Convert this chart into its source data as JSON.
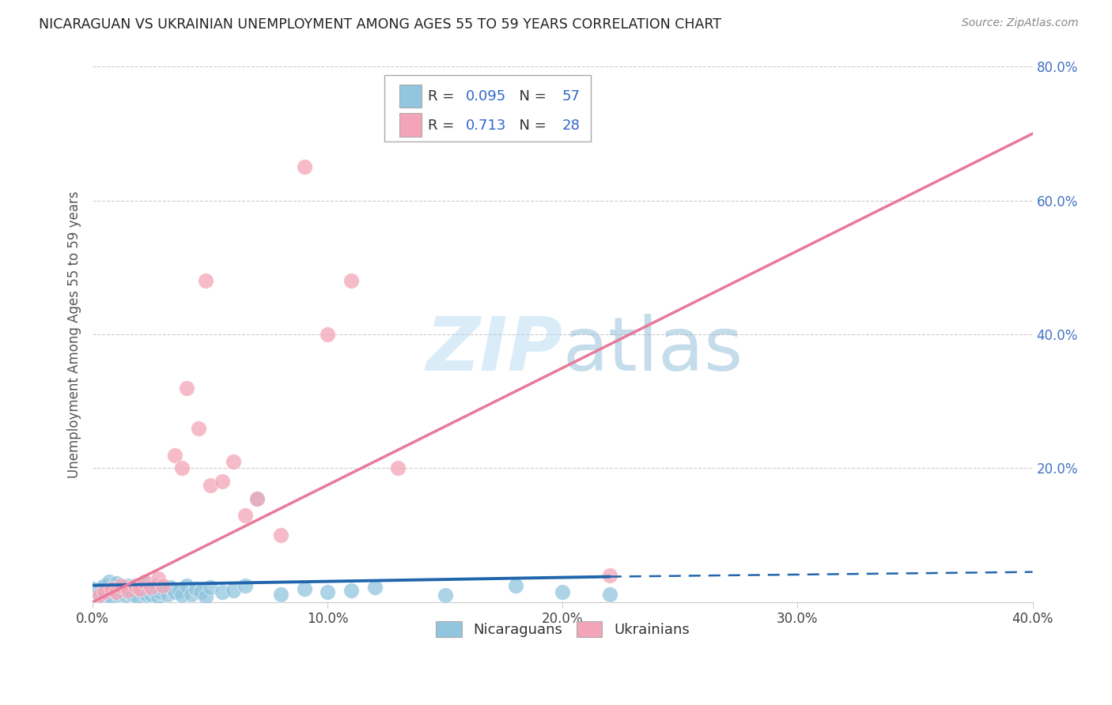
{
  "title": "NICARAGUAN VS UKRAINIAN UNEMPLOYMENT AMONG AGES 55 TO 59 YEARS CORRELATION CHART",
  "source": "Source: ZipAtlas.com",
  "ylabel": "Unemployment Among Ages 55 to 59 years",
  "xlim": [
    0.0,
    0.4
  ],
  "ylim": [
    0.0,
    0.8
  ],
  "nicaraguan_R": 0.095,
  "nicaraguan_N": 57,
  "ukrainian_R": 0.713,
  "ukrainian_N": 28,
  "blue_scatter_color": "#92c5de",
  "pink_scatter_color": "#f4a4b8",
  "blue_line_color": "#2166ac",
  "pink_line_color": "#e8799a",
  "legend_R_color": "#3366cc",
  "legend_N_color": "#3366cc",
  "watermark_color": "#aed6f1",
  "background_color": "#ffffff",
  "grid_color": "#cccccc",
  "ytick_color": "#4472c4",
  "nic_x": [
    0.0,
    0.002,
    0.003,
    0.004,
    0.005,
    0.005,
    0.006,
    0.007,
    0.008,
    0.009,
    0.01,
    0.01,
    0.011,
    0.012,
    0.013,
    0.014,
    0.015,
    0.015,
    0.016,
    0.017,
    0.018,
    0.019,
    0.02,
    0.021,
    0.022,
    0.023,
    0.024,
    0.025,
    0.026,
    0.027,
    0.028,
    0.029,
    0.03,
    0.032,
    0.033,
    0.035,
    0.037,
    0.038,
    0.04,
    0.042,
    0.044,
    0.046,
    0.048,
    0.05,
    0.055,
    0.06,
    0.065,
    0.07,
    0.08,
    0.09,
    0.1,
    0.11,
    0.12,
    0.15,
    0.18,
    0.2,
    0.22
  ],
  "nic_y": [
    0.02,
    0.015,
    0.018,
    0.022,
    0.01,
    0.025,
    0.012,
    0.03,
    0.008,
    0.02,
    0.015,
    0.028,
    0.012,
    0.018,
    0.022,
    0.01,
    0.025,
    0.015,
    0.02,
    0.012,
    0.018,
    0.008,
    0.022,
    0.015,
    0.028,
    0.01,
    0.02,
    0.012,
    0.018,
    0.025,
    0.008,
    0.015,
    0.02,
    0.012,
    0.022,
    0.015,
    0.018,
    0.01,
    0.025,
    0.012,
    0.02,
    0.015,
    0.008,
    0.022,
    0.015,
    0.018,
    0.025,
    0.155,
    0.012,
    0.02,
    0.015,
    0.018,
    0.022,
    0.01,
    0.025,
    0.015,
    0.012
  ],
  "ukr_x": [
    0.003,
    0.005,
    0.008,
    0.01,
    0.012,
    0.015,
    0.018,
    0.02,
    0.022,
    0.025,
    0.028,
    0.03,
    0.035,
    0.038,
    0.04,
    0.045,
    0.048,
    0.05,
    0.055,
    0.06,
    0.065,
    0.07,
    0.08,
    0.09,
    0.1,
    0.11,
    0.13,
    0.22
  ],
  "ukr_y": [
    0.01,
    0.015,
    0.02,
    0.015,
    0.025,
    0.018,
    0.025,
    0.02,
    0.03,
    0.022,
    0.035,
    0.025,
    0.22,
    0.2,
    0.32,
    0.26,
    0.48,
    0.175,
    0.18,
    0.21,
    0.13,
    0.155,
    0.1,
    0.65,
    0.4,
    0.48,
    0.2,
    0.04
  ],
  "nic_line_x0": 0.0,
  "nic_line_x_solid_end": 0.22,
  "nic_line_x1": 0.4,
  "nic_line_y0": 0.025,
  "nic_line_y_solid_end": 0.038,
  "nic_line_y1": 0.045,
  "ukr_line_x0": 0.0,
  "ukr_line_x1": 0.4,
  "ukr_line_y0": 0.0,
  "ukr_line_y1": 0.7
}
